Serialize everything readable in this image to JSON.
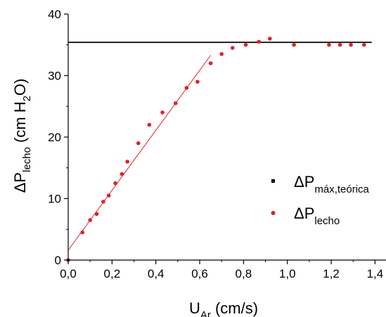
{
  "chart_data": {
    "type": "scatter",
    "xlabel": {
      "main": "U",
      "sub": "Ar",
      "after": " (cm/s)"
    },
    "ylabel": {
      "pre": "ΔP",
      "sub": "lecho",
      "mid": " (cm H",
      "sub2": "2",
      "post": "O)"
    },
    "xlim": [
      0.0,
      1.45
    ],
    "ylim": [
      0,
      40
    ],
    "xticks": [
      0.0,
      0.2,
      0.4,
      0.6,
      0.8,
      1.0,
      1.2,
      1.4
    ],
    "xtick_labels": [
      "0,0",
      "0,2",
      "0,4",
      "0,6",
      "0,8",
      "1,0",
      "1,2",
      "1,4"
    ],
    "yticks": [
      0,
      10,
      20,
      30,
      40
    ],
    "ytick_labels": [
      "0",
      "10",
      "20",
      "30",
      "40"
    ],
    "grid": false,
    "legend_placement": "right",
    "series": [
      {
        "name": {
          "pre": "ΔP",
          "sub": "máx,teórica"
        },
        "kind": "hline",
        "color": "#000000",
        "y": 35.4
      },
      {
        "name": {
          "pre": "ΔP",
          "sub": "lecho"
        },
        "kind": "points",
        "color": "#e0202a",
        "points": [
          [
            0.0,
            0.0
          ],
          [
            0.065,
            4.5
          ],
          [
            0.1,
            6.5
          ],
          [
            0.13,
            7.5
          ],
          [
            0.16,
            9.5
          ],
          [
            0.185,
            10.5
          ],
          [
            0.215,
            12.5
          ],
          [
            0.245,
            14.0
          ],
          [
            0.27,
            16.0
          ],
          [
            0.32,
            19.0
          ],
          [
            0.37,
            22.0
          ],
          [
            0.43,
            24.0
          ],
          [
            0.49,
            25.5
          ],
          [
            0.54,
            28.0
          ],
          [
            0.59,
            29.0
          ],
          [
            0.65,
            32.0
          ],
          [
            0.7,
            33.5
          ],
          [
            0.75,
            34.5
          ],
          [
            0.81,
            35.0
          ],
          [
            0.87,
            35.5
          ],
          [
            0.92,
            36.0
          ],
          [
            1.03,
            35.0
          ],
          [
            1.19,
            35.0
          ],
          [
            1.24,
            35.0
          ],
          [
            1.29,
            35.0
          ],
          [
            1.35,
            35.0
          ]
        ]
      },
      {
        "kind": "fit_line",
        "color": "#e0202a",
        "from": [
          0.0,
          1.6
        ],
        "to": [
          0.65,
          33.3
        ]
      }
    ]
  }
}
